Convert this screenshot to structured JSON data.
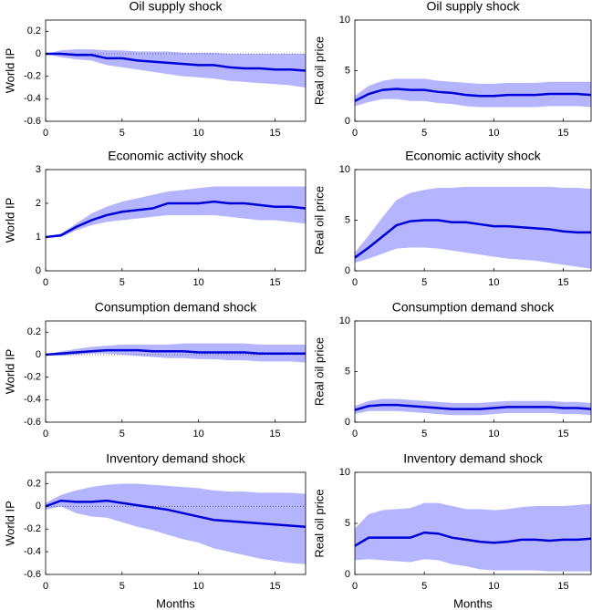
{
  "chart_data": [
    {
      "type": "line",
      "title": "Oil supply shock",
      "ylabel": "World IP",
      "x": [
        0,
        1,
        2,
        3,
        4,
        5,
        6,
        7,
        8,
        9,
        10,
        11,
        12,
        13,
        14,
        15,
        16,
        17
      ],
      "xlim": [
        0,
        17
      ],
      "xticks": [
        0,
        5,
        10,
        15
      ],
      "ylim": [
        -0.6,
        0.3
      ],
      "yticks": [
        -0.6,
        -0.4,
        -0.2,
        0,
        0.2
      ],
      "series": [
        {
          "color": "#0000d8",
          "band_color": "#b4b4ff",
          "values": [
            0,
            0,
            -0.01,
            -0.01,
            -0.04,
            -0.04,
            -0.06,
            -0.07,
            -0.08,
            -0.09,
            -0.1,
            -0.1,
            -0.12,
            -0.13,
            -0.13,
            -0.14,
            -0.14,
            -0.15
          ],
          "upper": [
            0,
            0.03,
            0.04,
            0.04,
            0.03,
            0.03,
            0.02,
            0.02,
            0.02,
            0.01,
            0.01,
            0.01,
            0,
            0,
            0,
            0,
            0,
            0
          ],
          "lower": [
            0,
            -0.03,
            -0.05,
            -0.06,
            -0.1,
            -0.12,
            -0.14,
            -0.16,
            -0.18,
            -0.2,
            -0.21,
            -0.22,
            -0.24,
            -0.25,
            -0.26,
            -0.27,
            -0.28,
            -0.3
          ]
        }
      ]
    },
    {
      "type": "line",
      "title": "Oil supply shock",
      "ylabel": "Real oil price",
      "x": [
        0,
        1,
        2,
        3,
        4,
        5,
        6,
        7,
        8,
        9,
        10,
        11,
        12,
        13,
        14,
        15,
        16,
        17
      ],
      "xlim": [
        0,
        17
      ],
      "xticks": [
        0,
        5,
        10,
        15
      ],
      "ylim": [
        0,
        10
      ],
      "yticks": [
        0,
        5,
        10
      ],
      "series": [
        {
          "color": "#0000d8",
          "band_color": "#b4b4ff",
          "values": [
            2,
            2.7,
            3.1,
            3.2,
            3.1,
            3.1,
            2.9,
            2.8,
            2.6,
            2.5,
            2.5,
            2.6,
            2.6,
            2.6,
            2.7,
            2.7,
            2.7,
            2.6
          ],
          "upper": [
            2.5,
            3.5,
            4,
            4.2,
            4.2,
            4.2,
            4,
            3.9,
            3.8,
            3.7,
            3.7,
            3.8,
            3.8,
            3.8,
            3.9,
            3.9,
            3.9,
            3.9
          ],
          "lower": [
            1.5,
            1.9,
            2.2,
            2.2,
            2,
            2,
            1.8,
            1.7,
            1.5,
            1.4,
            1.4,
            1.4,
            1.4,
            1.4,
            1.5,
            1.5,
            1.5,
            1.4
          ]
        }
      ]
    },
    {
      "type": "line",
      "title": "Economic activity shock",
      "ylabel": "World IP",
      "x": [
        0,
        1,
        2,
        3,
        4,
        5,
        6,
        7,
        8,
        9,
        10,
        11,
        12,
        13,
        14,
        15,
        16,
        17
      ],
      "xlim": [
        0,
        17
      ],
      "xticks": [
        0,
        5,
        10,
        15
      ],
      "ylim": [
        0,
        3
      ],
      "yticks": [
        0,
        1,
        2,
        3
      ],
      "series": [
        {
          "color": "#0000d8",
          "band_color": "#b4b4ff",
          "values": [
            1,
            1.05,
            1.3,
            1.5,
            1.65,
            1.75,
            1.8,
            1.85,
            2,
            2,
            2,
            2.05,
            2,
            2,
            1.95,
            1.9,
            1.9,
            1.85
          ],
          "upper": [
            1,
            1.1,
            1.4,
            1.7,
            1.9,
            2.05,
            2.15,
            2.25,
            2.35,
            2.4,
            2.45,
            2.5,
            2.5,
            2.5,
            2.5,
            2.5,
            2.5,
            2.5
          ],
          "lower": [
            1,
            1,
            1.2,
            1.35,
            1.45,
            1.5,
            1.55,
            1.6,
            1.65,
            1.65,
            1.65,
            1.65,
            1.6,
            1.55,
            1.5,
            1.5,
            1.45,
            1.4
          ]
        }
      ]
    },
    {
      "type": "line",
      "title": "Economic activity shock",
      "ylabel": "Real oil price",
      "x": [
        0,
        1,
        2,
        3,
        4,
        5,
        6,
        7,
        8,
        9,
        10,
        11,
        12,
        13,
        14,
        15,
        16,
        17
      ],
      "xlim": [
        0,
        17
      ],
      "xticks": [
        0,
        5,
        10,
        15
      ],
      "ylim": [
        0,
        10
      ],
      "yticks": [
        0,
        5,
        10
      ],
      "series": [
        {
          "color": "#0000d8",
          "band_color": "#b4b4ff",
          "values": [
            1.3,
            2.3,
            3.4,
            4.5,
            4.9,
            5,
            5,
            4.8,
            4.8,
            4.6,
            4.4,
            4.4,
            4.3,
            4.2,
            4.1,
            3.9,
            3.8,
            3.8
          ],
          "upper": [
            1.8,
            3.5,
            5.3,
            7,
            7.7,
            8,
            8.2,
            8.2,
            8.3,
            8.3,
            8.3,
            8.3,
            8.3,
            8.3,
            8.3,
            8.2,
            8.2,
            8.1
          ],
          "lower": [
            0.8,
            1.2,
            1.7,
            2.2,
            2.3,
            2.3,
            2.2,
            2,
            1.8,
            1.6,
            1.4,
            1.2,
            1.1,
            1,
            0.8,
            0.6,
            0.4,
            0.2
          ]
        }
      ]
    },
    {
      "type": "line",
      "title": "Consumption demand shock",
      "ylabel": "World IP",
      "x": [
        0,
        1,
        2,
        3,
        4,
        5,
        6,
        7,
        8,
        9,
        10,
        11,
        12,
        13,
        14,
        15,
        16,
        17
      ],
      "xlim": [
        0,
        17
      ],
      "xticks": [
        0,
        5,
        10,
        15
      ],
      "ylim": [
        -0.6,
        0.3
      ],
      "yticks": [
        -0.6,
        -0.4,
        -0.2,
        0,
        0.2
      ],
      "series": [
        {
          "color": "#0000d8",
          "band_color": "#b4b4ff",
          "values": [
            0,
            0.01,
            0.02,
            0.03,
            0.04,
            0.04,
            0.04,
            0.03,
            0.03,
            0.03,
            0.02,
            0.02,
            0.02,
            0.02,
            0.01,
            0.01,
            0.01,
            0.01
          ],
          "upper": [
            0,
            0.03,
            0.05,
            0.07,
            0.08,
            0.09,
            0.09,
            0.09,
            0.09,
            0.1,
            0.1,
            0.1,
            0.1,
            0.1,
            0.09,
            0.09,
            0.09,
            0.09
          ],
          "lower": [
            0,
            -0.01,
            0,
            0.01,
            0.01,
            0,
            -0.01,
            -0.02,
            -0.03,
            -0.03,
            -0.04,
            -0.04,
            -0.05,
            -0.05,
            -0.06,
            -0.06,
            -0.06,
            -0.07
          ]
        }
      ]
    },
    {
      "type": "line",
      "title": "Consumption demand shock",
      "ylabel": "Real oil price",
      "x": [
        0,
        1,
        2,
        3,
        4,
        5,
        6,
        7,
        8,
        9,
        10,
        11,
        12,
        13,
        14,
        15,
        16,
        17
      ],
      "xlim": [
        0,
        17
      ],
      "xticks": [
        0,
        5,
        10,
        15
      ],
      "ylim": [
        0,
        10
      ],
      "yticks": [
        0,
        5,
        10
      ],
      "series": [
        {
          "color": "#0000d8",
          "band_color": "#b4b4ff",
          "values": [
            1.2,
            1.6,
            1.7,
            1.7,
            1.6,
            1.5,
            1.4,
            1.3,
            1.3,
            1.3,
            1.4,
            1.5,
            1.5,
            1.5,
            1.5,
            1.4,
            1.4,
            1.3
          ],
          "upper": [
            1.6,
            2.1,
            2.3,
            2.3,
            2.2,
            2.1,
            2,
            1.9,
            1.9,
            1.9,
            2,
            2.1,
            2.1,
            2.1,
            2.1,
            2,
            2,
            1.9
          ],
          "lower": [
            0.8,
            1.1,
            1.1,
            1.1,
            1,
            0.9,
            0.8,
            0.7,
            0.7,
            0.7,
            0.8,
            0.9,
            0.9,
            0.9,
            0.9,
            0.8,
            0.8,
            0.7
          ]
        }
      ]
    },
    {
      "type": "line",
      "title": "Inventory demand shock",
      "ylabel": "World IP",
      "xlabel": "Months",
      "x": [
        0,
        1,
        2,
        3,
        4,
        5,
        6,
        7,
        8,
        9,
        10,
        11,
        12,
        13,
        14,
        15,
        16,
        17
      ],
      "xlim": [
        0,
        17
      ],
      "xticks": [
        0,
        5,
        10,
        15
      ],
      "ylim": [
        -0.6,
        0.3
      ],
      "yticks": [
        -0.6,
        -0.4,
        -0.2,
        0,
        0.2
      ],
      "series": [
        {
          "color": "#0000d8",
          "band_color": "#b4b4ff",
          "values": [
            0,
            0.05,
            0.04,
            0.04,
            0.05,
            0.03,
            0.01,
            -0.01,
            -0.03,
            -0.06,
            -0.09,
            -0.12,
            -0.13,
            -0.14,
            -0.15,
            -0.16,
            -0.17,
            -0.18
          ],
          "upper": [
            0.03,
            0.1,
            0.14,
            0.17,
            0.19,
            0.2,
            0.2,
            0.19,
            0.18,
            0.17,
            0.16,
            0.14,
            0.13,
            0.13,
            0.12,
            0.12,
            0.12,
            0.11
          ],
          "lower": [
            -0.03,
            0,
            -0.06,
            -0.09,
            -0.1,
            -0.14,
            -0.18,
            -0.21,
            -0.25,
            -0.29,
            -0.32,
            -0.37,
            -0.4,
            -0.43,
            -0.46,
            -0.48,
            -0.5,
            -0.51
          ]
        }
      ]
    },
    {
      "type": "line",
      "title": "Inventory demand shock",
      "ylabel": "Real oil price",
      "xlabel": "Months",
      "x": [
        0,
        1,
        2,
        3,
        4,
        5,
        6,
        7,
        8,
        9,
        10,
        11,
        12,
        13,
        14,
        15,
        16,
        17
      ],
      "xlim": [
        0,
        17
      ],
      "xticks": [
        0,
        5,
        10,
        15
      ],
      "ylim": [
        0,
        10
      ],
      "yticks": [
        0,
        5,
        10
      ],
      "series": [
        {
          "color": "#0000d8",
          "band_color": "#b4b4ff",
          "values": [
            2.8,
            3.6,
            3.6,
            3.6,
            3.6,
            4.1,
            4,
            3.6,
            3.4,
            3.2,
            3.1,
            3.2,
            3.4,
            3.4,
            3.3,
            3.4,
            3.4,
            3.5
          ],
          "upper": [
            4.5,
            5.9,
            6.3,
            6.4,
            6.5,
            7,
            7,
            6.7,
            6.4,
            6.4,
            6.3,
            6.4,
            6.6,
            6.7,
            6.7,
            6.7,
            6.8,
            6.9
          ],
          "lower": [
            1.4,
            1.5,
            1.4,
            1.3,
            1.2,
            1.5,
            1.4,
            1,
            0.8,
            0.5,
            0.4,
            0.4,
            0.4,
            0.4,
            0.3,
            0.3,
            0.3,
            0.3
          ]
        }
      ]
    }
  ]
}
